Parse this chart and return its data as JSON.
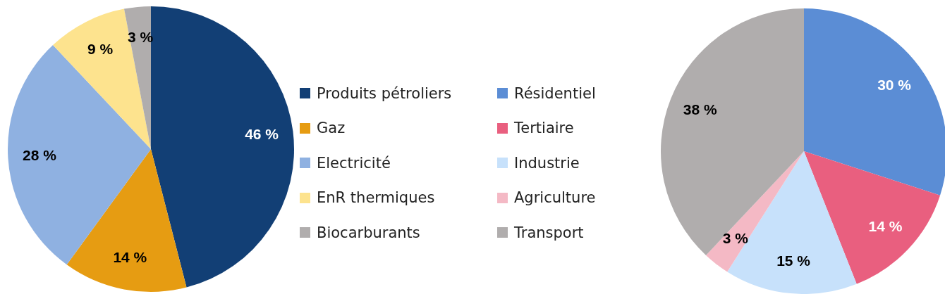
{
  "chart_data": [
    {
      "type": "pie",
      "categories": [
        "Produits pétroliers",
        "Gaz",
        "Electricité",
        "EnR thermiques",
        "Biocarburants"
      ],
      "values": [
        46,
        14,
        28,
        9,
        3
      ],
      "value_labels": [
        "46 %",
        "14 %",
        "28 %",
        "9 %",
        "3 %"
      ],
      "colors": [
        "#123f75",
        "#e69c12",
        "#8fb1e1",
        "#fde38e",
        "#b0adad"
      ],
      "legend": "right"
    },
    {
      "type": "pie",
      "categories": [
        "Résidentiel",
        "Tertiaire",
        "Industrie",
        "Agriculture",
        "Transport"
      ],
      "values": [
        30,
        14,
        15,
        3,
        38
      ],
      "value_labels": [
        "30 %",
        "14 %",
        "15 %",
        "3 %",
        "38 %"
      ],
      "colors": [
        "#5b8dd5",
        "#e95f7f",
        "#c7e1fb",
        "#f4b9c5",
        "#b0adad"
      ],
      "legend": "left"
    }
  ]
}
